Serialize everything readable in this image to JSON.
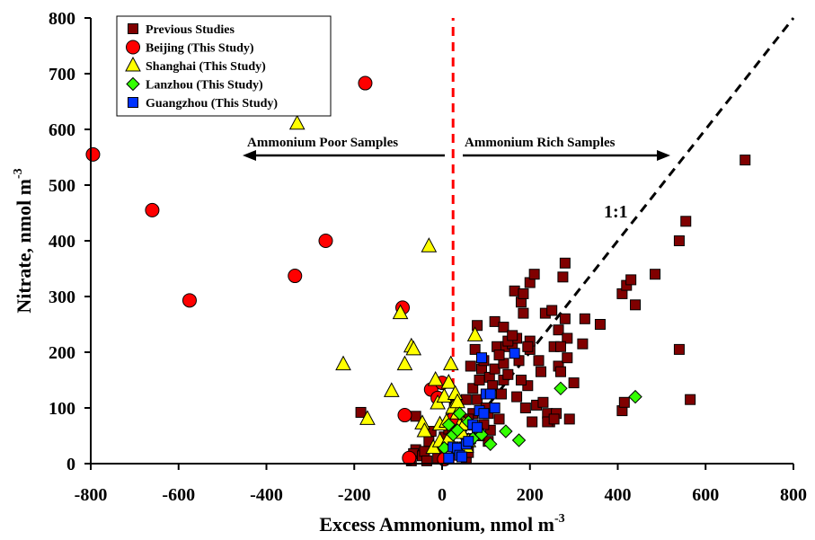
{
  "chart_data": {
    "type": "scatter",
    "xlabel": "Excess Ammonium, nmol m",
    "xlabel_sup": "-3",
    "ylabel": "Nitrate, nmol m",
    "ylabel_sup": "-3",
    "xlim": [
      -800,
      800
    ],
    "ylim": [
      0,
      800
    ],
    "x_ticks": [
      "-800",
      "-600",
      "-400",
      "-200",
      "0",
      "200",
      "400",
      "600",
      "800"
    ],
    "y_ticks": [
      "0",
      "100",
      "200",
      "300",
      "400",
      "500",
      "600",
      "700",
      "800"
    ],
    "grid": false,
    "legend_position": "top-left",
    "annotations": {
      "poor": "Ammonium Poor Samples",
      "rich": "Ammonium Rich Samples",
      "one_to_one": "1:1"
    },
    "reference_lines": {
      "one_to_one": {
        "x": [
          0,
          800
        ],
        "y": [
          0,
          800
        ],
        "color": "#000000",
        "style": "dashed"
      },
      "zero_excess": {
        "x": [
          25,
          25
        ],
        "y": [
          0,
          800
        ],
        "color": "#ff0000",
        "style": "dashed"
      }
    },
    "series": [
      {
        "name": "Previous Studies",
        "marker": "square",
        "color": "#800000",
        "points": [
          [
            -185,
            92
          ],
          [
            -60,
            85
          ],
          [
            -60,
            25
          ],
          [
            -65,
            18
          ],
          [
            -70,
            5
          ],
          [
            -45,
            14
          ],
          [
            -40,
            22
          ],
          [
            -30,
            40
          ],
          [
            -25,
            58
          ],
          [
            -35,
            5
          ],
          [
            -10,
            10
          ],
          [
            -5,
            28
          ],
          [
            5,
            48
          ],
          [
            15,
            62
          ],
          [
            20,
            78
          ],
          [
            25,
            90
          ],
          [
            28,
            100
          ],
          [
            32,
            112
          ],
          [
            40,
            60
          ],
          [
            45,
            75
          ],
          [
            50,
            30
          ],
          [
            55,
            10
          ],
          [
            60,
            20
          ],
          [
            65,
            45
          ],
          [
            70,
            90
          ],
          [
            70,
            135
          ],
          [
            80,
            115
          ],
          [
            85,
            150
          ],
          [
            90,
            170
          ],
          [
            95,
            185
          ],
          [
            100,
            100
          ],
          [
            105,
            40
          ],
          [
            108,
            155
          ],
          [
            110,
            60
          ],
          [
            115,
            140
          ],
          [
            120,
            170
          ],
          [
            125,
            210
          ],
          [
            130,
            80
          ],
          [
            135,
            125
          ],
          [
            140,
            150
          ],
          [
            140,
            180
          ],
          [
            145,
            210
          ],
          [
            150,
            160
          ],
          [
            160,
            215
          ],
          [
            165,
            310
          ],
          [
            170,
            225
          ],
          [
            175,
            185
          ],
          [
            180,
            290
          ],
          [
            185,
            270
          ],
          [
            190,
            100
          ],
          [
            195,
            140
          ],
          [
            200,
            205
          ],
          [
            200,
            325
          ],
          [
            205,
            75
          ],
          [
            210,
            340
          ],
          [
            215,
            105
          ],
          [
            220,
            185
          ],
          [
            225,
            165
          ],
          [
            230,
            110
          ],
          [
            235,
            270
          ],
          [
            240,
            90
          ],
          [
            245,
            75
          ],
          [
            250,
            275
          ],
          [
            255,
            210
          ],
          [
            260,
            90
          ],
          [
            265,
            240
          ],
          [
            265,
            175
          ],
          [
            270,
            165
          ],
          [
            275,
            335
          ],
          [
            280,
            360
          ],
          [
            280,
            260
          ],
          [
            285,
            225
          ],
          [
            285,
            190
          ],
          [
            290,
            80
          ],
          [
            300,
            145
          ],
          [
            320,
            215
          ],
          [
            325,
            260
          ],
          [
            360,
            250
          ],
          [
            65,
            175
          ],
          [
            75,
            205
          ],
          [
            80,
            248
          ],
          [
            120,
            255
          ],
          [
            140,
            245
          ],
          [
            410,
            95
          ],
          [
            415,
            110
          ],
          [
            410,
            305
          ],
          [
            420,
            320
          ],
          [
            430,
            330
          ],
          [
            440,
            285
          ],
          [
            485,
            340
          ],
          [
            540,
            205
          ],
          [
            540,
            400
          ],
          [
            555,
            435
          ],
          [
            565,
            115
          ],
          [
            690,
            545
          ],
          [
            240,
            75
          ],
          [
            200,
            220
          ],
          [
            150,
            220
          ],
          [
            130,
            195
          ],
          [
            185,
            305
          ],
          [
            195,
            210
          ],
          [
            170,
            120
          ],
          [
            160,
            230
          ],
          [
            180,
            150
          ],
          [
            110,
            125
          ],
          [
            95,
            70
          ],
          [
            55,
            115
          ],
          [
            60,
            80
          ],
          [
            255,
            80
          ],
          [
            270,
            210
          ],
          [
            105,
            90
          ],
          [
            85,
            50
          ]
        ]
      },
      {
        "name": "Beijing (This Study)",
        "marker": "circle",
        "color": "#ff0000",
        "points": [
          [
            -795,
            555
          ],
          [
            -660,
            455
          ],
          [
            -575,
            293
          ],
          [
            -335,
            337
          ],
          [
            -265,
            400
          ],
          [
            -175,
            683
          ],
          [
            -90,
            280
          ],
          [
            -85,
            87
          ],
          [
            -25,
            133
          ],
          [
            -10,
            118
          ],
          [
            0,
            145
          ],
          [
            5,
            8
          ],
          [
            -75,
            10
          ],
          [
            25,
            80
          ]
        ]
      },
      {
        "name": "Shanghai (This Study)",
        "marker": "triangle",
        "color": "#ffff00",
        "points": [
          [
            -330,
            610
          ],
          [
            -225,
            178
          ],
          [
            -170,
            80
          ],
          [
            -115,
            130
          ],
          [
            -95,
            270
          ],
          [
            -85,
            178
          ],
          [
            -70,
            210
          ],
          [
            -65,
            205
          ],
          [
            -45,
            72
          ],
          [
            -40,
            58
          ],
          [
            -30,
            390
          ],
          [
            -15,
            150
          ],
          [
            -10,
            108
          ],
          [
            -5,
            70
          ],
          [
            5,
            120
          ],
          [
            10,
            75
          ],
          [
            15,
            145
          ],
          [
            20,
            178
          ],
          [
            25,
            100
          ],
          [
            30,
            125
          ],
          [
            35,
            90
          ],
          [
            40,
            68
          ],
          [
            45,
            55
          ],
          [
            55,
            30
          ],
          [
            60,
            40
          ],
          [
            75,
            230
          ],
          [
            -20,
            28
          ],
          [
            -5,
            40
          ],
          [
            15,
            45
          ],
          [
            35,
            110
          ],
          [
            50,
            70
          ]
        ]
      },
      {
        "name": "Lanzhou (This Study)",
        "marker": "diamond",
        "color": "#33ff00",
        "points": [
          [
            5,
            28
          ],
          [
            15,
            70
          ],
          [
            25,
            52
          ],
          [
            35,
            60
          ],
          [
            40,
            90
          ],
          [
            60,
            75
          ],
          [
            70,
            45
          ],
          [
            80,
            62
          ],
          [
            90,
            52
          ],
          [
            110,
            35
          ],
          [
            145,
            58
          ],
          [
            175,
            42
          ],
          [
            270,
            135
          ],
          [
            440,
            120
          ],
          [
            30,
            25
          ]
        ]
      },
      {
        "name": "Guangzhou (This Study)",
        "marker": "square",
        "color": "#0033ff",
        "points": [
          [
            15,
            10
          ],
          [
            25,
            30
          ],
          [
            35,
            28
          ],
          [
            40,
            15
          ],
          [
            45,
            12
          ],
          [
            55,
            35
          ],
          [
            60,
            40
          ],
          [
            70,
            70
          ],
          [
            80,
            65
          ],
          [
            85,
            95
          ],
          [
            90,
            190
          ],
          [
            95,
            90
          ],
          [
            100,
            125
          ],
          [
            110,
            125
          ],
          [
            120,
            100
          ],
          [
            165,
            198
          ]
        ]
      }
    ]
  }
}
